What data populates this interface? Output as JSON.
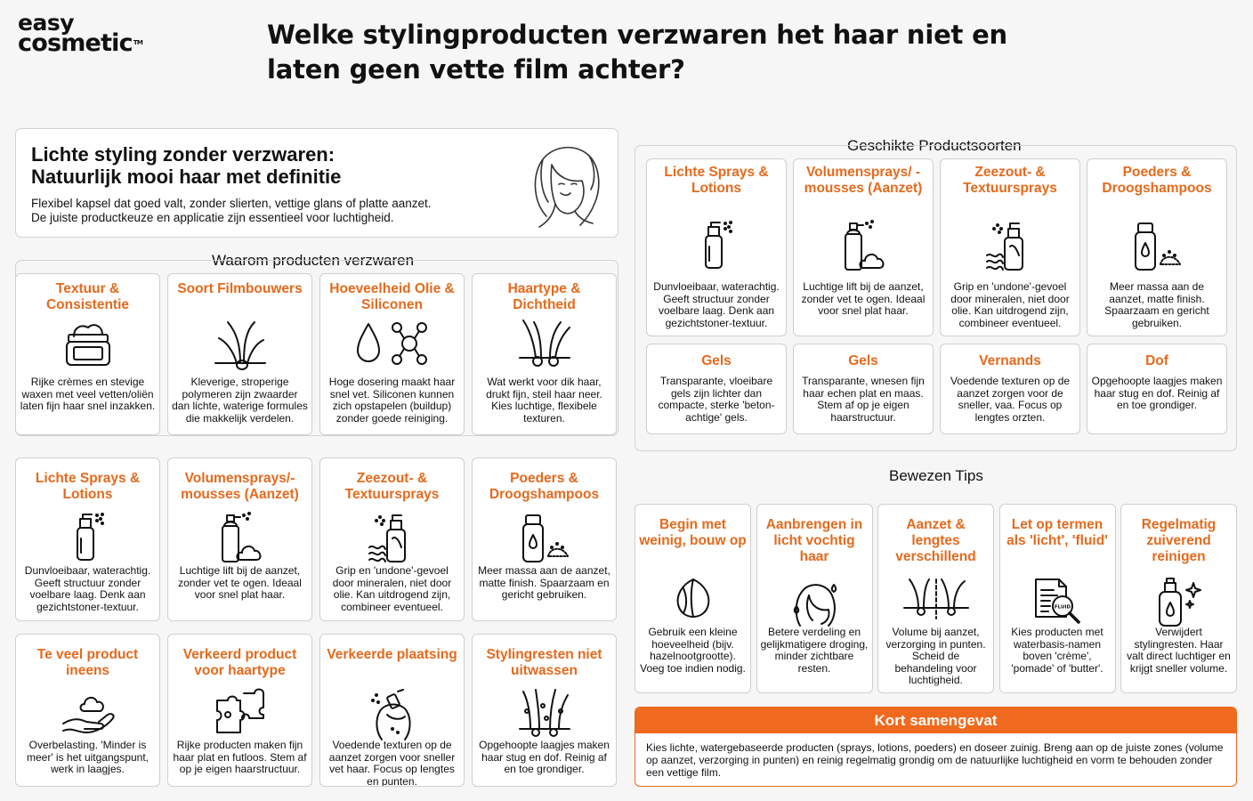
{
  "brand": {
    "line1": "easy",
    "line2": "cosmetic",
    "tm": "TM"
  },
  "title": "Welke stylingproducten verzwaren het haar niet en laten geen vette film achter?",
  "intro": {
    "heading_line1": "Lichte styling zonder verzwaren:",
    "heading_line2": "Natuurlijk mooi haar met definitie",
    "text_line1": "Flexibel kapsel dat goed valt, zonder slierten, vettige glans of platte aanzet.",
    "text_line2": "De juiste productkeuze en applicatie zijn essentieel voor luchtigheid."
  },
  "sections": {
    "why": "Waarom producten verzwaren",
    "types": "Geschikte Productsoorten",
    "tips": "Bewezen Tips"
  },
  "why_cards": [
    {
      "title": "Textuur & Consistentie",
      "icon": "jar-icon",
      "text": "Rijke crèmes en stevige waxen met veel vetten/oliën laten fijn haar snel inzakken."
    },
    {
      "title": "Soort Filmbouwers",
      "icon": "hair-strand-icon",
      "text": "Kleverige, stroperige polymeren zijn zwaarder dan lichte, waterige formules die makkelijk verdelen."
    },
    {
      "title": "Hoeveelheid Olie & Siliconen",
      "icon": "oil-drop-molecule-icon",
      "text": "Hoge dosering maakt haar snel vet. Siliconen kunnen zich opstapelen (buildup) zonder goede reiniging."
    },
    {
      "title": "Haartype & Dichtheid",
      "icon": "hair-follicle-icon",
      "text": "Wat werkt voor dik haar, drukt fijn, steil haar neer. Kies luchtige, flexibele texturen."
    }
  ],
  "left_types": [
    {
      "title": "Lichte Sprays & Lotions",
      "icon": "spray-bottle-icon",
      "text": "Dunvloeibaar, waterachtig. Geeft structuur zonder voelbare laag. Denk aan gezichtstoner-textuur."
    },
    {
      "title": "Volumensprays/-mousses (Aanzet)",
      "icon": "mousse-can-icon",
      "text": "Luchtige lift bij de aanzet, zonder vet te ogen. Ideaal voor snel plat haar."
    },
    {
      "title": "Zeezout- & Textuursprays",
      "icon": "salt-spray-icon",
      "text": "Grip en 'undone'-gevoel door mineralen, niet door olie. Kan uitdrogend zijn, combineer eventueel."
    },
    {
      "title": "Poeders & Droogshampoos",
      "icon": "powder-bottle-icon",
      "text": "Meer massa aan de aanzet, matte finish. Spaarzaam en gericht gebruiken."
    }
  ],
  "mistakes": [
    {
      "title": "Te veel product ineens",
      "icon": "hand-product-icon",
      "text": "Overbelasting. 'Minder is meer' is het uitgangspunt, werk in laagjes."
    },
    {
      "title": "Verkeerd product voor haartype",
      "icon": "puzzle-icon",
      "text": "Rijke producten maken fijn haar plat en futloos. Stem af op je eigen haarstructuur."
    },
    {
      "title": "Verkeerde plaatsing",
      "icon": "head-spray-icon",
      "text": "Voedende texturen op de aanzet zorgen voor sneller vet haar. Focus op lengtes en punten."
    },
    {
      "title": "Stylingresten niet uitwassen",
      "icon": "buildup-hair-icon",
      "text": "Opgehoopte laagjes maken haar stug en dof. Reinig af en toe grondiger."
    }
  ],
  "types": [
    {
      "title": "Lichte Sprays & Lotions",
      "icon": "spray-bottle-icon",
      "text": "Dunvloeibaar, waterachtig. Geeft structuur zonder voelbare laag. Denk aan gezichtstoner-textuur."
    },
    {
      "title": "Volumensprays/ -mousses (Aanzet)",
      "icon": "mousse-can-icon",
      "text": "Luchtige lift bij de aanzet, zonder vet te ogen. Ideaal voor snel plat haar."
    },
    {
      "title": "Zeezout- & Textuursprays",
      "icon": "salt-spray-icon",
      "text": "Grip en 'undone'-gevoel door mineralen, niet door olie. Kan uitdrogend zijn, combineer eventueel."
    },
    {
      "title": "Poeders & Droogshampoos",
      "icon": "powder-bottle-icon",
      "text": "Meer massa aan de aanzet, matte finish. Spaarzaam en gericht gebruiken."
    },
    {
      "title": "Gels",
      "text": "Transparante, vloeibare gels zijn lichter dan compacte, sterke 'beton-achtige' gels."
    },
    {
      "title": "Gels",
      "text": "Transparante, wnesen fijn haar echen plat en maas. Stem af op je eigen haarstructuur."
    },
    {
      "title": "Vernands",
      "text": "Voedende texturen op de aanzet zorgen voor de sneller, vaa. Focus op lengtes orzten."
    },
    {
      "title": "Dof",
      "text": "Opgehoopte laagjes maken haar stug en dof. Reinig af en toe grondiger."
    }
  ],
  "tips": [
    {
      "title": "Begin met weinig, bouw op",
      "icon": "hazelnut-icon",
      "text": "Gebruik een kleine hoeveelheid (bijv. hazelnootgrootte). Voeg toe indien nodig."
    },
    {
      "title": "Aanbrengen in licht vochtig haar",
      "icon": "damp-hair-head-icon",
      "text": "Betere verdeling en gelijkmatigere droging, minder zichtbare resten."
    },
    {
      "title": "Aanzet & lengtes verschillend",
      "icon": "hair-sections-icon",
      "text": "Volume bij aanzet, verzorging in punten. Scheid de behandeling voor luchtigheid."
    },
    {
      "title": "Let op termen als 'licht', 'fluid'",
      "icon": "label-magnifier-icon",
      "badge": "FLUID",
      "text": "Kies producten met waterbasis-namen boven 'crème', 'pomade' of 'butter'."
    },
    {
      "title": "Regelmatig zuiverend reinigen",
      "icon": "clarifying-shampoo-icon",
      "text": "Verwijdert stylingresten. Haar valt direct luchtiger en krijgt sneller volume."
    }
  ],
  "summary": {
    "title": "Kort samengevat",
    "text": "Kies lichte, watergebaseerde producten (sprays, lotions, poeders) en doseer zuinig. Breng aan op de juiste zones (volume op aanzet, verzorging in punten) en reinig regelmatig grondig om de natuurlijke luchtigheid en vorm te behouden zonder een vettige film."
  },
  "colors": {
    "accent": "#e46a1d",
    "summary_header": "#ef6a1e",
    "border": "#d2d2d2",
    "background": "#f6f6f6"
  }
}
